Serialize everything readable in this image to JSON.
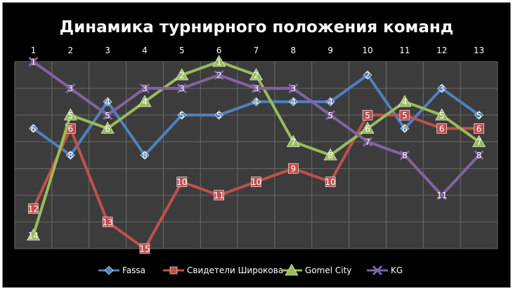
{
  "chart_data": {
    "type": "line",
    "title": "Динамика турнирного положения команд",
    "categories": [
      "1",
      "2",
      "3",
      "4",
      "5",
      "6",
      "7",
      "8",
      "9",
      "10",
      "11",
      "12",
      "13"
    ],
    "ylim": [
      1,
      15
    ],
    "y_inverted": true,
    "grid": true,
    "legend_position": "bottom",
    "series": [
      {
        "name": "Fassa",
        "color": "#4f81bd",
        "marker": "diamond",
        "values": [
          6,
          8,
          4,
          8,
          5,
          5,
          4,
          4,
          4,
          2,
          6,
          3,
          5
        ]
      },
      {
        "name": "Свидетели  Широкова",
        "color": "#c0504d",
        "marker": "square",
        "values": [
          12,
          6,
          13,
          15,
          10,
          11,
          10,
          9,
          10,
          5,
          5,
          6,
          6
        ]
      },
      {
        "name": "Gomel City",
        "color": "#9bbb59",
        "marker": "triangle",
        "values": [
          14,
          5,
          6,
          4,
          2,
          1,
          2,
          7,
          8,
          6,
          4,
          5,
          7
        ]
      },
      {
        "name": "KG",
        "color": "#8064a2",
        "marker": "x",
        "values": [
          1,
          3,
          5,
          3,
          3,
          2,
          3,
          3,
          5,
          7,
          8,
          11,
          8
        ]
      }
    ]
  }
}
